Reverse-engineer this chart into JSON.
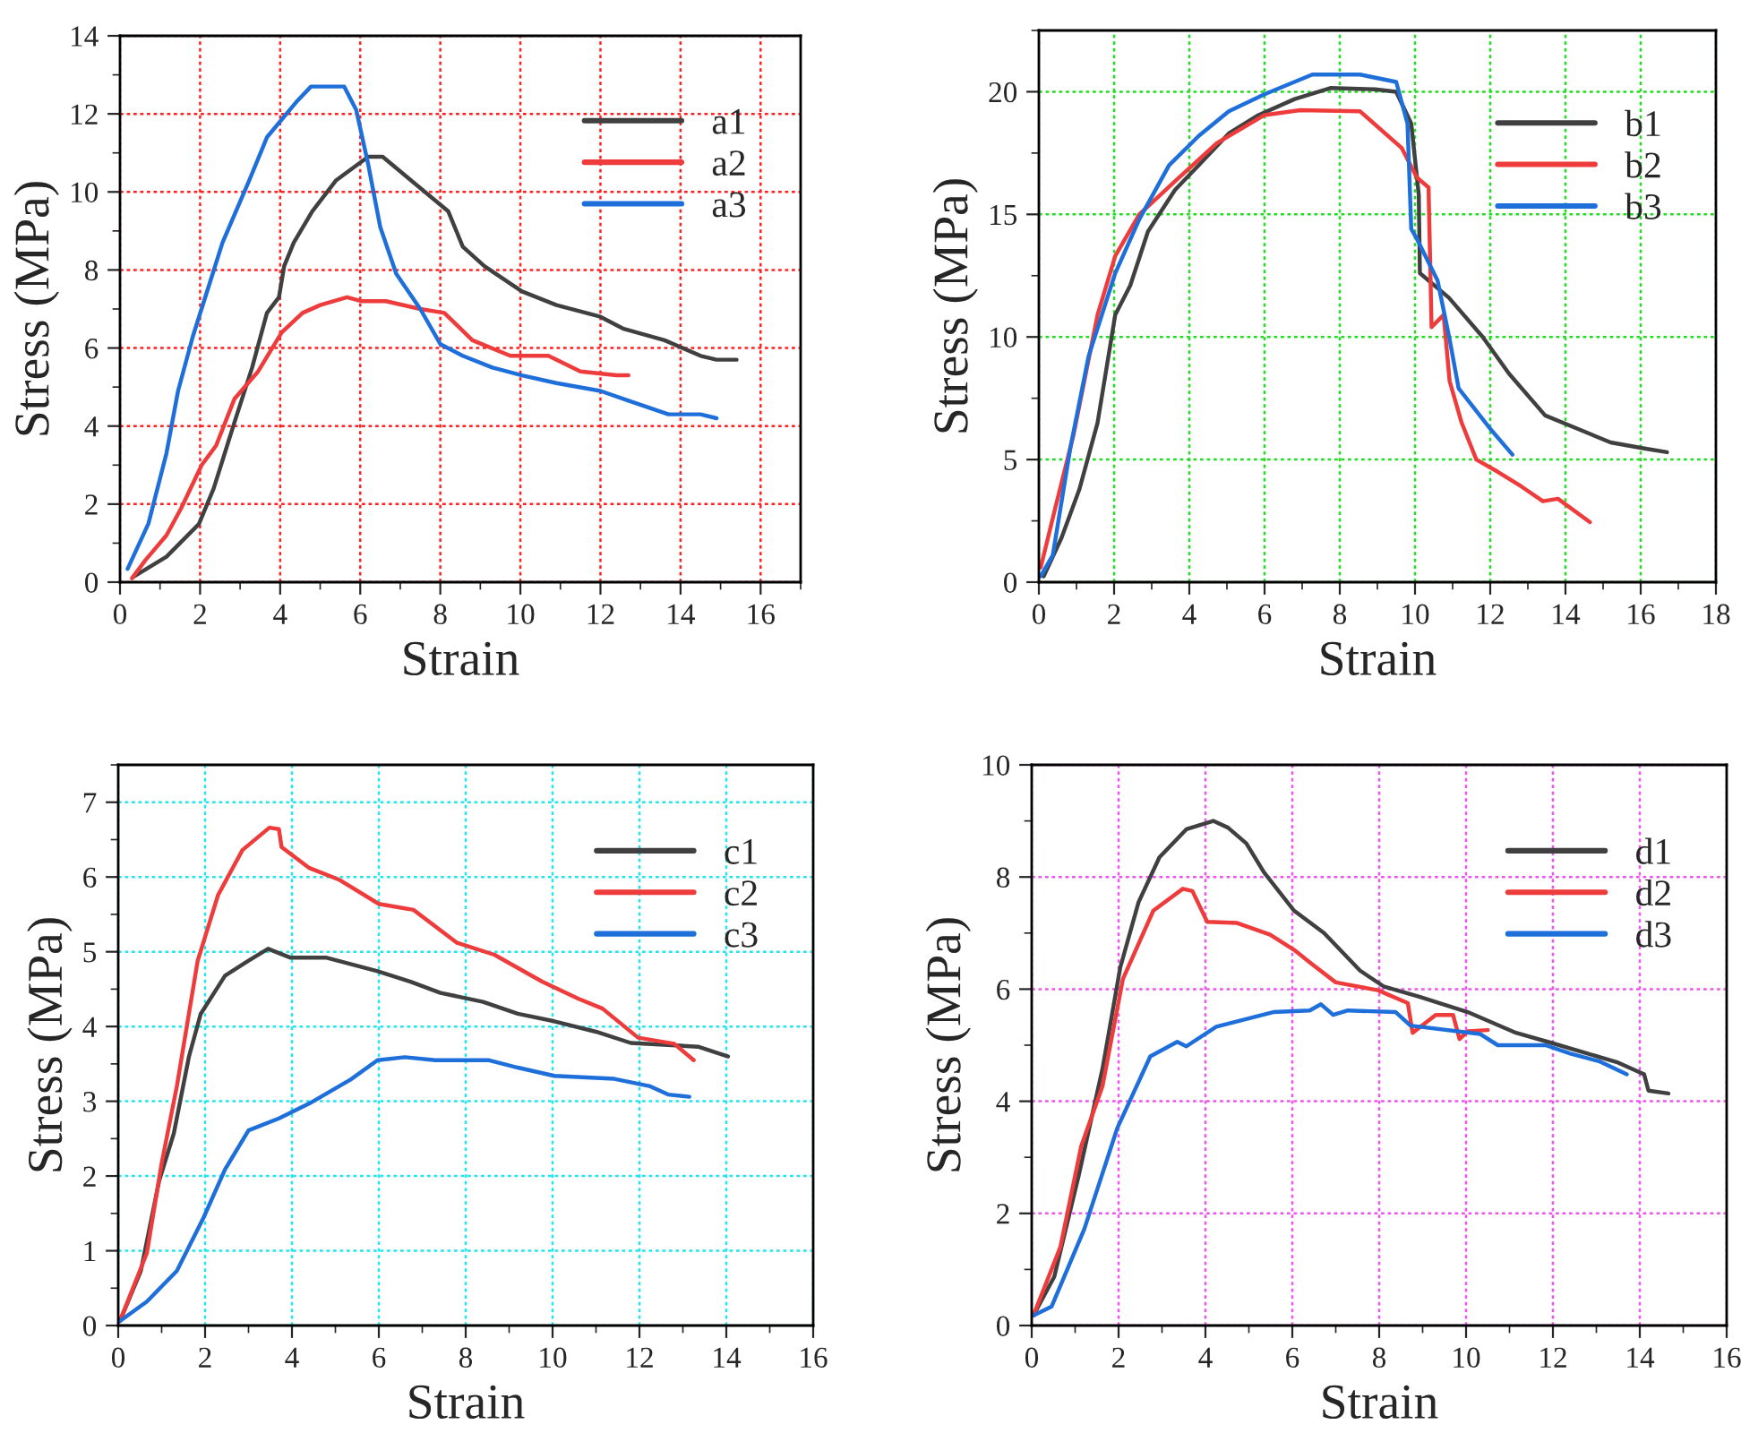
{
  "chart_data": [
    {
      "type": "line",
      "xlabel": "Strain",
      "ylabel": "Stress (MPa)",
      "xlim": [
        0,
        17
      ],
      "ylim": [
        0,
        14
      ],
      "xticks": [
        0,
        2,
        4,
        6,
        8,
        10,
        12,
        14,
        16
      ],
      "yticks": [
        0,
        2,
        4,
        6,
        8,
        10,
        12,
        14
      ],
      "grid": true,
      "legend": "top right",
      "series": [
        {
          "name": "a1",
          "color": "#404040",
          "x": [
            0.34,
            1.16,
            1.97,
            2.34,
            2.86,
            3.3,
            3.67,
            3.97,
            4.1,
            4.34,
            4.8,
            5.4,
            6.2,
            6.56,
            7.5,
            8.2,
            8.56,
            9.1,
            10.04,
            10.9,
            12.0,
            12.56,
            13.6,
            14.5,
            14.9,
            15.4
          ],
          "values": [
            0.14,
            0.65,
            1.49,
            2.4,
            4.1,
            5.5,
            6.9,
            7.3,
            8.1,
            8.7,
            9.5,
            10.3,
            10.9,
            10.9,
            10.1,
            9.5,
            8.6,
            8.1,
            7.45,
            7.1,
            6.8,
            6.5,
            6.2,
            5.8,
            5.7,
            5.7
          ]
        },
        {
          "name": "a2",
          "color": "#ee3b3b",
          "x": [
            0.3,
            0.64,
            1.16,
            1.53,
            2.04,
            2.4,
            2.86,
            3.45,
            4.04,
            4.56,
            5.0,
            5.67,
            6.04,
            6.64,
            7.5,
            8.1,
            8.8,
            9.75,
            10.7,
            11.5,
            12.4,
            12.7
          ],
          "values": [
            0.1,
            0.57,
            1.2,
            1.9,
            3.0,
            3.5,
            4.7,
            5.4,
            6.4,
            6.9,
            7.1,
            7.3,
            7.2,
            7.2,
            7.0,
            6.9,
            6.2,
            5.8,
            5.8,
            5.4,
            5.3,
            5.3
          ]
        },
        {
          "name": "a3",
          "color": "#1f6fdb",
          "x": [
            0.19,
            0.71,
            1.16,
            1.45,
            1.82,
            2.19,
            2.56,
            3.23,
            3.67,
            4.4,
            4.77,
            5.6,
            5.9,
            6.2,
            6.5,
            6.9,
            7.5,
            8.0,
            8.56,
            9.3,
            10.04,
            10.9,
            12.0,
            12.7,
            13.7,
            14.5,
            14.9
          ],
          "values": [
            0.34,
            1.5,
            3.3,
            4.9,
            6.3,
            7.5,
            8.7,
            10.3,
            11.4,
            12.3,
            12.7,
            12.7,
            12.1,
            10.7,
            9.1,
            7.9,
            7.0,
            6.1,
            5.8,
            5.5,
            5.3,
            5.1,
            4.9,
            4.65,
            4.3,
            4.3,
            4.2
          ]
        }
      ]
    },
    {
      "type": "line",
      "xlabel": "Strain",
      "ylabel": "Stress (MPa)",
      "xlim": [
        0,
        18
      ],
      "ylim": [
        0,
        22.5
      ],
      "xticks": [
        0,
        2,
        4,
        6,
        8,
        10,
        12,
        14,
        16,
        18
      ],
      "yticks": [
        0,
        5,
        10,
        15,
        20
      ],
      "grid": true,
      "legend": "right",
      "series": [
        {
          "name": "b1",
          "color": "#404040",
          "x": [
            0.13,
            0.6,
            1.08,
            1.56,
            2.03,
            2.43,
            2.9,
            3.62,
            4.25,
            5.05,
            5.84,
            6.8,
            7.75,
            8.94,
            9.5,
            9.9,
            10.1,
            10.13,
            10.9,
            11.8,
            12.5,
            13.46,
            14.25,
            15.2,
            16.1,
            16.7
          ],
          "values": [
            0.24,
            1.8,
            3.8,
            6.5,
            10.9,
            12.1,
            14.3,
            16.0,
            17.0,
            18.3,
            19.05,
            19.7,
            20.15,
            20.1,
            20.0,
            18.7,
            15.8,
            12.6,
            11.6,
            10.0,
            8.5,
            6.8,
            6.3,
            5.7,
            5.45,
            5.3
          ]
        },
        {
          "name": "b2",
          "color": "#ee3b3b",
          "x": [
            0.05,
            0.44,
            0.92,
            1.56,
            2.03,
            2.67,
            3.62,
            4.73,
            6.0,
            6.95,
            8.54,
            9.65,
            10.05,
            10.36,
            10.44,
            10.76,
            10.92,
            11.24,
            11.63,
            12.2,
            12.83,
            13.4,
            13.8,
            14.65
          ],
          "values": [
            0.6,
            3.05,
            6.0,
            10.9,
            13.3,
            15.0,
            16.35,
            17.9,
            19.05,
            19.25,
            19.2,
            17.7,
            16.5,
            16.1,
            10.4,
            10.9,
            8.2,
            6.5,
            5.0,
            4.5,
            3.9,
            3.3,
            3.4,
            2.45
          ]
        },
        {
          "name": "b3",
          "color": "#1f6fdb",
          "x": [
            0.05,
            0.37,
            0.84,
            1.32,
            2.03,
            2.67,
            3.46,
            4.25,
            5.05,
            6.0,
            7.27,
            8.54,
            9.5,
            9.8,
            9.9,
            10.05,
            10.6,
            10.92,
            11.16,
            12.03,
            12.59
          ],
          "values": [
            0.24,
            1.1,
            5.5,
            9.2,
            12.6,
            14.8,
            17.0,
            18.2,
            19.2,
            19.9,
            20.7,
            20.7,
            20.4,
            18.7,
            14.4,
            14.0,
            12.3,
            9.9,
            7.9,
            6.2,
            5.2
          ]
        }
      ]
    },
    {
      "type": "line",
      "xlabel": "Strain",
      "ylabel": "Stress (MPa)",
      "xlim": [
        0,
        16
      ],
      "ylim": [
        0,
        7.5
      ],
      "xticks": [
        0,
        2,
        4,
        6,
        8,
        10,
        12,
        14,
        16
      ],
      "yticks": [
        0,
        1,
        2,
        3,
        4,
        5,
        6,
        7
      ],
      "grid": true,
      "legend": "top right",
      "series": [
        {
          "name": "c1",
          "color": "#404040",
          "x": [
            0.04,
            0.52,
            0.94,
            1.28,
            1.63,
            1.9,
            2.46,
            3.0,
            3.45,
            3.97,
            4.8,
            5.97,
            6.73,
            7.42,
            8.4,
            9.2,
            10.04,
            11.0,
            11.8,
            13.35,
            14.04
          ],
          "values": [
            0.06,
            0.73,
            1.93,
            2.57,
            3.6,
            4.17,
            4.68,
            4.88,
            5.04,
            4.92,
            4.92,
            4.74,
            4.6,
            4.45,
            4.33,
            4.17,
            4.07,
            3.93,
            3.78,
            3.73,
            3.6
          ]
        },
        {
          "name": "c2",
          "color": "#ee3b3b",
          "x": [
            0.04,
            0.66,
            1.0,
            1.35,
            1.83,
            2.3,
            2.86,
            3.48,
            3.7,
            3.76,
            4.4,
            5.1,
            6.0,
            6.8,
            7.8,
            8.66,
            9.76,
            10.6,
            11.15,
            11.97,
            12.8,
            13.25
          ],
          "values": [
            0.06,
            0.97,
            2.17,
            3.2,
            4.88,
            5.76,
            6.36,
            6.66,
            6.64,
            6.4,
            6.12,
            5.96,
            5.64,
            5.56,
            5.12,
            4.96,
            4.6,
            4.37,
            4.24,
            3.85,
            3.77,
            3.55
          ]
        },
        {
          "name": "c3",
          "color": "#1f6fdb",
          "x": [
            0.04,
            0.66,
            1.35,
            1.97,
            2.46,
            3.0,
            3.7,
            4.4,
            5.35,
            5.97,
            6.6,
            7.3,
            8.52,
            9.2,
            10.04,
            11.42,
            12.25,
            12.66,
            13.15
          ],
          "values": [
            0.06,
            0.32,
            0.73,
            1.45,
            2.09,
            2.61,
            2.77,
            2.97,
            3.29,
            3.55,
            3.59,
            3.55,
            3.55,
            3.45,
            3.34,
            3.3,
            3.2,
            3.09,
            3.06
          ]
        }
      ]
    },
    {
      "type": "line",
      "xlabel": "Strain",
      "ylabel": "Stress (MPa)",
      "xlim": [
        0,
        16
      ],
      "ylim": [
        0,
        10
      ],
      "xticks": [
        0,
        2,
        4,
        6,
        8,
        10,
        12,
        14,
        16
      ],
      "yticks": [
        0,
        2,
        4,
        6,
        8,
        10
      ],
      "grid": true,
      "legend": "top right",
      "series": [
        {
          "name": "d1",
          "color": "#404040",
          "x": [
            0.04,
            0.52,
            1.08,
            1.63,
            2.04,
            2.46,
            2.94,
            3.56,
            4.18,
            4.52,
            4.94,
            5.35,
            6.04,
            6.73,
            7.56,
            8.1,
            8.94,
            10.04,
            11.15,
            11.97,
            12.8,
            13.5,
            14.1,
            14.2,
            14.66
          ],
          "values": [
            0.18,
            0.87,
            2.67,
            4.58,
            6.39,
            7.55,
            8.35,
            8.85,
            9.0,
            8.88,
            8.6,
            8.08,
            7.4,
            7.0,
            6.33,
            6.05,
            5.86,
            5.59,
            5.22,
            5.04,
            4.85,
            4.69,
            4.48,
            4.19,
            4.14
          ]
        },
        {
          "name": "d2",
          "color": "#ee3b3b",
          "x": [
            0.04,
            0.66,
            1.14,
            1.63,
            2.1,
            2.8,
            3.48,
            3.7,
            4.04,
            4.73,
            5.49,
            6.04,
            6.46,
            7.0,
            7.97,
            8.66,
            8.77,
            9.3,
            9.7,
            9.85,
            10.04,
            10.5
          ],
          "values": [
            0.18,
            1.4,
            3.2,
            4.27,
            6.18,
            7.4,
            7.79,
            7.75,
            7.2,
            7.18,
            6.97,
            6.7,
            6.44,
            6.12,
            5.98,
            5.75,
            5.22,
            5.54,
            5.54,
            5.11,
            5.25,
            5.27
          ]
        },
        {
          "name": "d3",
          "color": "#1f6fdb",
          "x": [
            0.04,
            0.46,
            1.21,
            1.97,
            2.73,
            3.35,
            3.56,
            4.25,
            5.56,
            6.4,
            6.66,
            6.94,
            7.28,
            8.38,
            8.72,
            10.32,
            10.73,
            11.83,
            12.4,
            13.08,
            13.7
          ],
          "values": [
            0.18,
            0.34,
            1.72,
            3.52,
            4.8,
            5.06,
            4.98,
            5.33,
            5.59,
            5.62,
            5.73,
            5.54,
            5.62,
            5.59,
            5.35,
            5.2,
            5.0,
            5.0,
            4.85,
            4.71,
            4.48
          ]
        }
      ]
    }
  ]
}
